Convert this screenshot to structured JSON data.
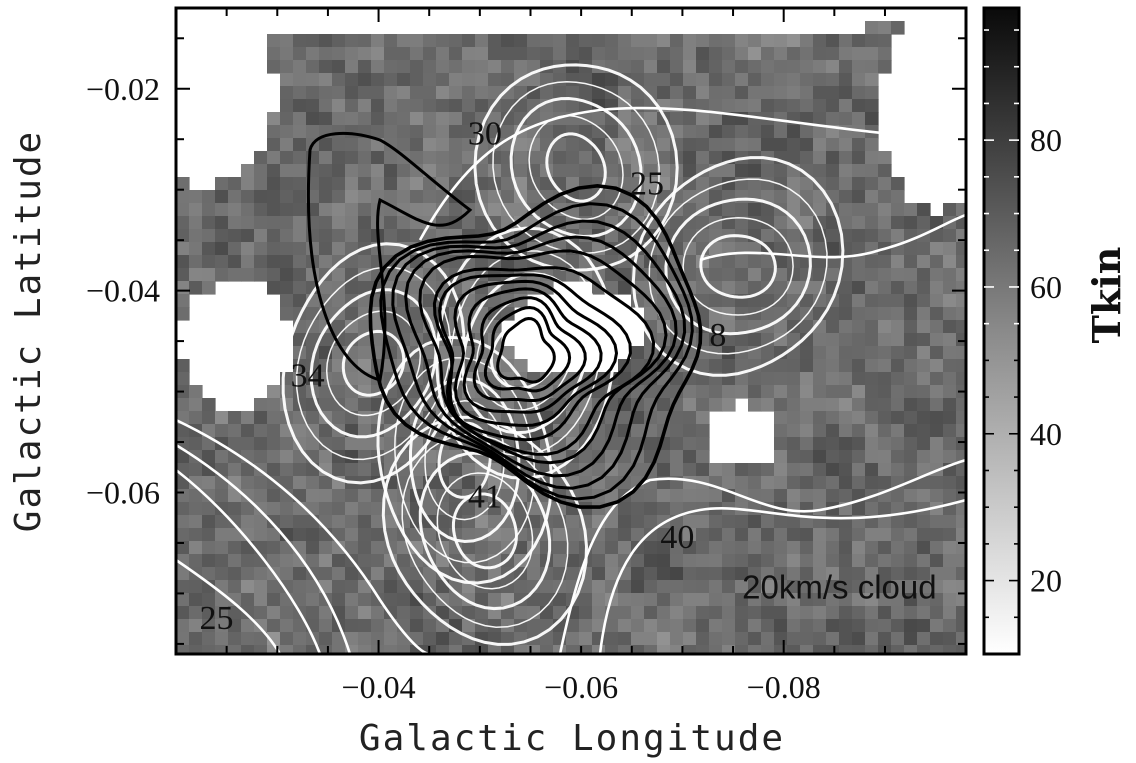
{
  "chart_data": {
    "type": "heatmap",
    "title": "",
    "xlabel": "Galactic Longitude",
    "ylabel": "Galactic Latitude",
    "xlim": [
      -0.02,
      -0.098
    ],
    "ylim": [
      -0.076,
      -0.012
    ],
    "x_ticks": [
      {
        "value": -0.04,
        "label": "−0.04"
      },
      {
        "value": -0.06,
        "label": "−0.06"
      },
      {
        "value": -0.08,
        "label": "−0.08"
      }
    ],
    "y_ticks": [
      {
        "value": -0.02,
        "label": "−0.02"
      },
      {
        "value": -0.04,
        "label": "−0.04"
      },
      {
        "value": -0.06,
        "label": "−0.06"
      }
    ],
    "colorbar": {
      "label": "Tkin",
      "range": [
        10,
        98
      ],
      "ticks": [
        {
          "value": 20,
          "label": "20"
        },
        {
          "value": 40,
          "label": "40"
        },
        {
          "value": 60,
          "label": "60"
        },
        {
          "value": 80,
          "label": "80"
        }
      ],
      "colormap": "gray_r"
    },
    "annotations": [
      {
        "text": "30",
        "x": -0.0505,
        "y": -0.0255
      },
      {
        "text": "25",
        "x": -0.0665,
        "y": -0.0305
      },
      {
        "text": "8",
        "x": -0.0735,
        "y": -0.0455
      },
      {
        "text": "34",
        "x": -0.033,
        "y": -0.0495
      },
      {
        "text": "41",
        "x": -0.0505,
        "y": -0.0615
      },
      {
        "text": "40",
        "x": -0.0695,
        "y": -0.0655
      },
      {
        "text": "25",
        "x": -0.024,
        "y": -0.0735
      },
      {
        "text": "20km/s cloud",
        "x": -0.0855,
        "y": -0.0705
      }
    ],
    "black_contours": {
      "center": [
        -0.0545,
        -0.0462
      ],
      "levels": 12
    },
    "white_contour_peaks": [
      {
        "x": -0.0595,
        "y": -0.0278
      },
      {
        "x": -0.0755,
        "y": -0.0376
      },
      {
        "x": -0.0395,
        "y": -0.0472
      },
      {
        "x": -0.0545,
        "y": -0.0462
      },
      {
        "x": -0.0485,
        "y": -0.0568
      },
      {
        "x": -0.0505,
        "y": -0.0638
      }
    ]
  }
}
